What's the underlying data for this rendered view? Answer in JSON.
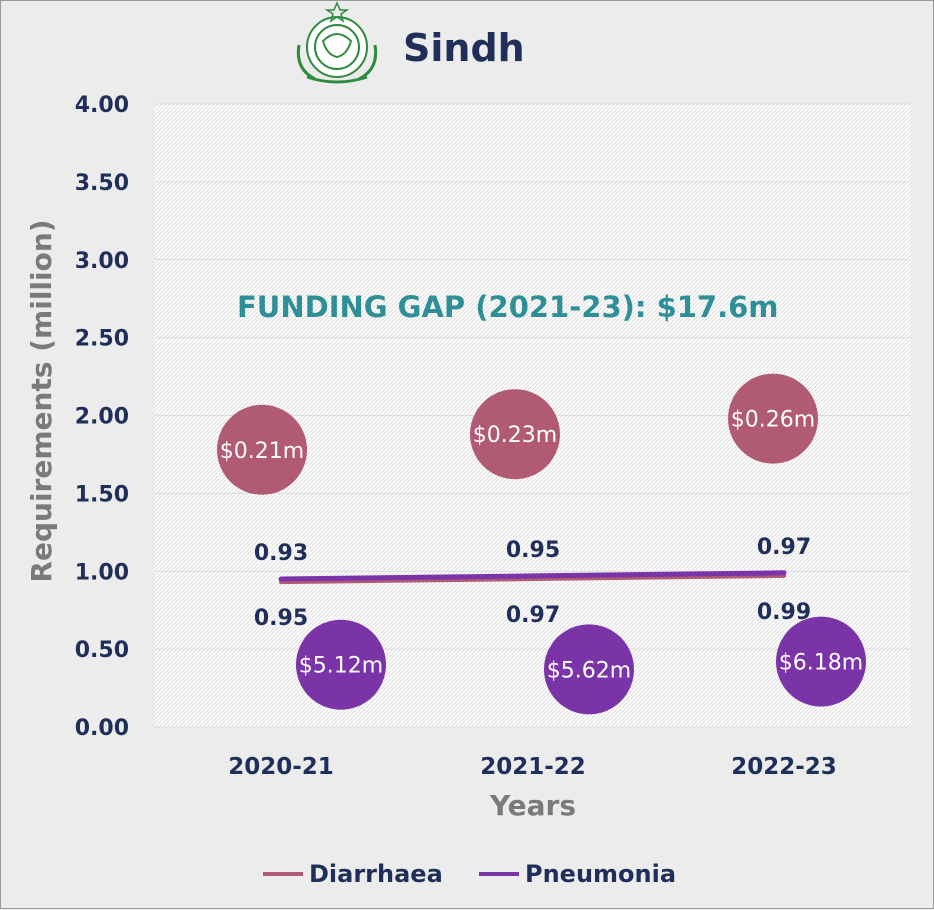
{
  "chart_data": {
    "type": "line",
    "title": "Sindh",
    "annotation": "FUNDING GAP (2021-23): $17.6m",
    "xlabel": "Years",
    "ylabel": "Requirements (million)",
    "categories": [
      "2020-21",
      "2021-22",
      "2022-23"
    ],
    "ylim": [
      0,
      4
    ],
    "yticks": [
      "0.00",
      "0.50",
      "1.00",
      "1.50",
      "2.00",
      "2.50",
      "3.00",
      "3.50",
      "4.00"
    ],
    "grid": true,
    "legend_position": "bottom",
    "series": [
      {
        "name": "Diarrhaea",
        "color": "#b05a73",
        "values": [
          0.93,
          0.95,
          0.97
        ],
        "value_labels": [
          "0.93",
          "0.95",
          "0.97"
        ],
        "bubbles": {
          "labels": [
            "$0.21m",
            "$0.23m",
            "$0.26m"
          ],
          "y": [
            1.78,
            1.88,
            1.98
          ]
        }
      },
      {
        "name": "Pneumonia",
        "color": "#7b33a8",
        "values": [
          0.95,
          0.97,
          0.99
        ],
        "value_labels": [
          "0.95",
          "0.97",
          "0.99"
        ],
        "bubbles": {
          "labels": [
            "$5.12m",
            "$5.62m",
            "$6.18m"
          ],
          "y": [
            0.4,
            0.37,
            0.42
          ]
        }
      }
    ]
  },
  "emblem_icon": "sindh-government-emblem-icon"
}
